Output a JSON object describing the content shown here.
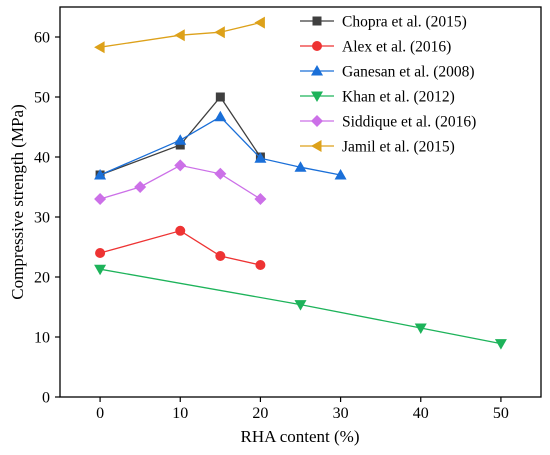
{
  "chart_data": {
    "type": "line",
    "xlabel": "RHA content (%)",
    "ylabel": "Compressive strength (MPa)",
    "xlim": [
      -5,
      55
    ],
    "ylim": [
      0,
      65
    ],
    "xticks": [
      0,
      10,
      20,
      30,
      40,
      50
    ],
    "yticks": [
      0,
      10,
      20,
      30,
      40,
      50,
      60
    ],
    "legend_position": "top-right",
    "grid": false,
    "series": [
      {
        "name": "Chopra et al. (2015)",
        "color": "#3f3f3f",
        "marker": "square",
        "x": [
          0,
          10,
          15,
          20
        ],
        "y": [
          37.0,
          42.0,
          50.0,
          40.0
        ]
      },
      {
        "name": "Alex et al. (2016)",
        "color": "#ee3333",
        "marker": "circle",
        "x": [
          0,
          10,
          15,
          20
        ],
        "y": [
          24.0,
          27.7,
          23.5,
          22.0
        ]
      },
      {
        "name": "Ganesan et al. (2008)",
        "color": "#1a6fd8",
        "marker": "triangle-up",
        "x": [
          0,
          10,
          15,
          20,
          25,
          30
        ],
        "y": [
          37.0,
          42.8,
          46.7,
          39.8,
          38.3,
          37.0
        ]
      },
      {
        "name": "Khan et al. (2012)",
        "color": "#1db35a",
        "marker": "triangle-down",
        "x": [
          0,
          25,
          40,
          50
        ],
        "y": [
          21.3,
          15.4,
          11.5,
          8.9
        ]
      },
      {
        "name": "Siddique et al. (2016)",
        "color": "#cc70e8",
        "marker": "diamond",
        "x": [
          0,
          5,
          10,
          15,
          20
        ],
        "y": [
          33.0,
          35.0,
          38.6,
          37.2,
          33.0
        ]
      },
      {
        "name": "Jamil et al. (2015)",
        "color": "#dda11a",
        "marker": "triangle-left",
        "x": [
          0,
          10,
          15,
          20
        ],
        "y": [
          58.3,
          60.3,
          60.8,
          62.4
        ]
      }
    ]
  }
}
